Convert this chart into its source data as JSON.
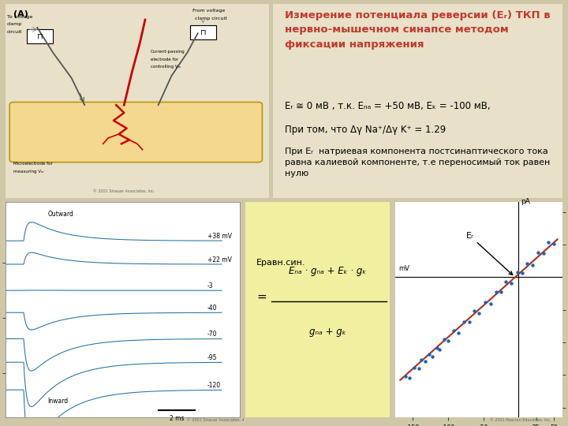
{
  "bg_color": "#cfc7a7",
  "panel_bg": "#e8e0c8",
  "white": "#ffffff",
  "formula_box_color": "#f0f0a0",
  "title_color": "#c0392b",
  "title_text": "Измерение потенциала реверсии (Eᵣ) ТКП в\nнервно-мышечном синапсе методом\nфиксации напряжения",
  "formula1": "Eᵣ ≅ 0 мВ , т.к. Eₙₐ = +50 мВ, Eₖ = -100 мВ,",
  "formula2": "При том, что Δγ Na⁺/Δγ K⁺ = 1.29",
  "desc": "При Eᵣ  натриевая компонента постсинаптического тока\nравна калиевой компоненте, т.е переносимый ток равен\nнулю",
  "voltage_levels": [
    38,
    22,
    -3,
    -40,
    -70,
    -95,
    -120
  ],
  "wave_color": "#2471a3",
  "line_color": "#b03020",
  "dot_color": "#2060b0",
  "scatter_x": [
    -160,
    -155,
    -148,
    -142,
    -138,
    -132,
    -127,
    -122,
    -116,
    -112,
    -106,
    -100,
    -92,
    -85,
    -78,
    -70,
    -63,
    -56,
    -48,
    -40,
    -32,
    -25,
    -18,
    -10,
    -2,
    5,
    12,
    20,
    28,
    35,
    42,
    50
  ],
  "scatter_y_base": [
    -155,
    -150,
    -143,
    -137,
    -133,
    -127,
    -122,
    -117,
    -111,
    -107,
    -101,
    -95,
    -87,
    -80,
    -73,
    -65,
    -58,
    -51,
    -43,
    -35,
    -27,
    -20,
    -13,
    -5,
    3,
    10,
    17,
    25,
    33,
    40,
    47,
    55
  ],
  "scatter_noise": [
    3,
    -4,
    5,
    -3,
    7,
    -2,
    4,
    -5,
    3,
    -4,
    6,
    -3,
    5,
    -6,
    4,
    -3,
    7,
    -4,
    5,
    -6,
    4,
    -3,
    6,
    -4,
    5,
    -3,
    4,
    -6,
    5,
    -3,
    7,
    -4
  ]
}
